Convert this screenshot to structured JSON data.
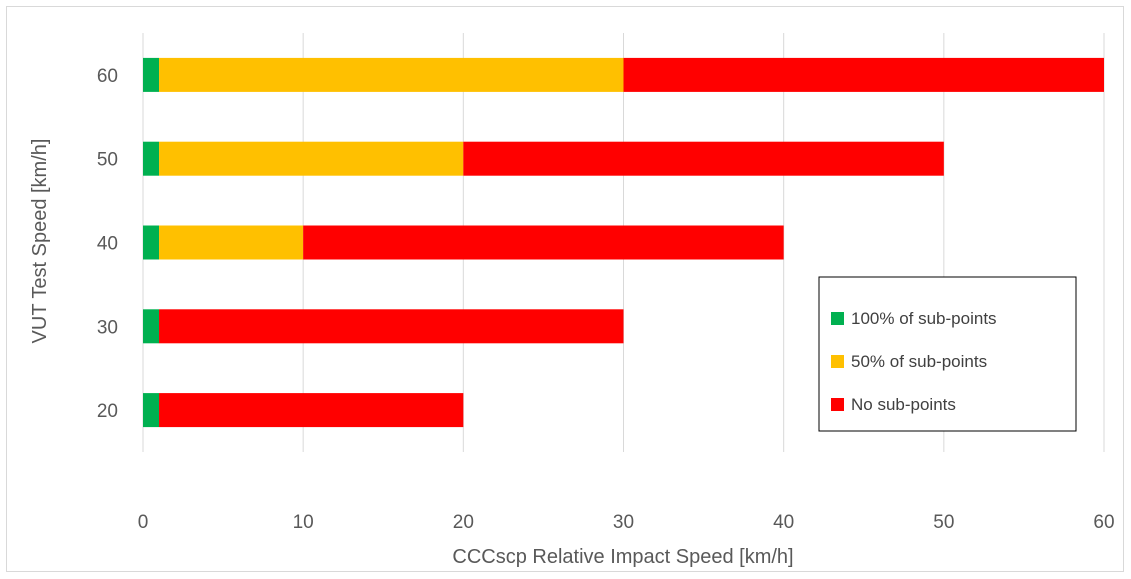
{
  "chart_data": {
    "type": "bar",
    "orientation": "horizontal",
    "stacked": true,
    "categories": [
      "20",
      "30",
      "40",
      "50",
      "60"
    ],
    "series": [
      {
        "name": "100% of sub-points",
        "color": "#00b050",
        "values": [
          1,
          1,
          1,
          1,
          1
        ]
      },
      {
        "name": "50% of sub-points",
        "color": "#ffc000",
        "values": [
          0,
          0,
          9,
          19,
          29
        ]
      },
      {
        "name": "No sub-points",
        "color": "#ff0000",
        "values": [
          19,
          29,
          30,
          30,
          30
        ]
      }
    ],
    "xlabel": "CCCscp Relative Impact Speed [km/h]",
    "ylabel": "VUT Test Speed [km/h]",
    "xlim": [
      0,
      60
    ],
    "xticks": [
      "0",
      "10",
      "20",
      "30",
      "40",
      "50",
      "60"
    ],
    "grid": "vertical",
    "legend_position": "right"
  }
}
